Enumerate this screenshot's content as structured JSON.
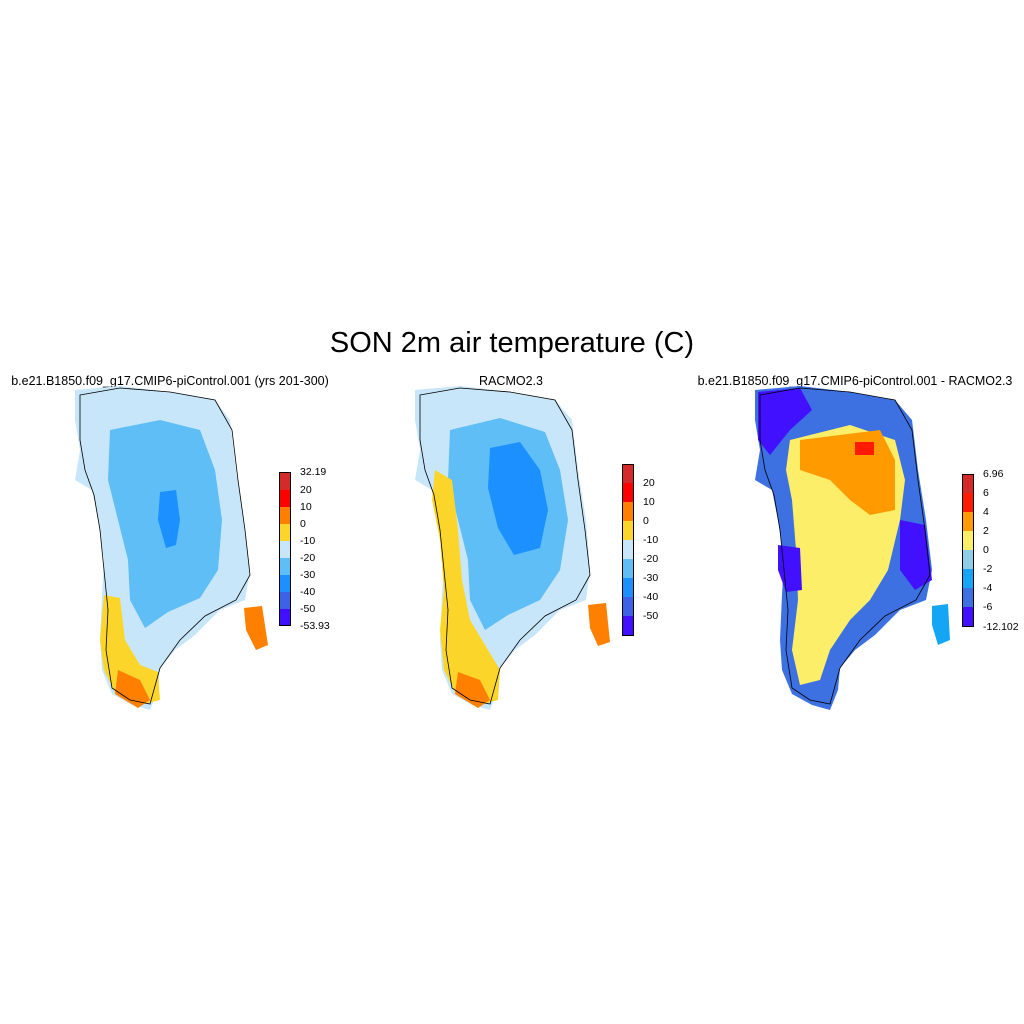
{
  "title": "SON 2m air temperature (C)",
  "panels": [
    {
      "title": "b.e21.B1850.f09_g17.CMIP6-piControl.001 (yrs 201-300)",
      "colorbar": {
        "colors": [
          "#d42a2a",
          "#ff0000",
          "#ff8000",
          "#fcd52a",
          "#c8e6f9",
          "#5ebef5",
          "#1c90ff",
          "#3d62e6",
          "#4010ff"
        ],
        "labels": [
          "32.19",
          "20",
          "10",
          "0",
          "-10",
          "-20",
          "-30",
          "-40",
          "-50",
          "-53.93"
        ]
      }
    },
    {
      "title": "RACMO2.3",
      "colorbar": {
        "colors": [
          "#d42a2a",
          "#ff0000",
          "#ff8000",
          "#fcd52a",
          "#c8e6f9",
          "#5ebef5",
          "#1c90ff",
          "#3d62e6",
          "#4010ff"
        ],
        "labels": [
          "20",
          "10",
          "0",
          "-10",
          "-20",
          "-30",
          "-40",
          "-50"
        ]
      }
    },
    {
      "title": "b.e21.B1850.f09_g17.CMIP6-piControl.001 - RACMO2.3",
      "colorbar": {
        "colors": [
          "#d42a2a",
          "#ff1a00",
          "#ff9a00",
          "#fdee6a",
          "#8ecde8",
          "#14a6f5",
          "#3d70e0",
          "#4010ff"
        ],
        "labels": [
          "6.96",
          "6",
          "4",
          "2",
          "0",
          "-2",
          "-4",
          "-6",
          "-12.102"
        ]
      }
    }
  ]
}
